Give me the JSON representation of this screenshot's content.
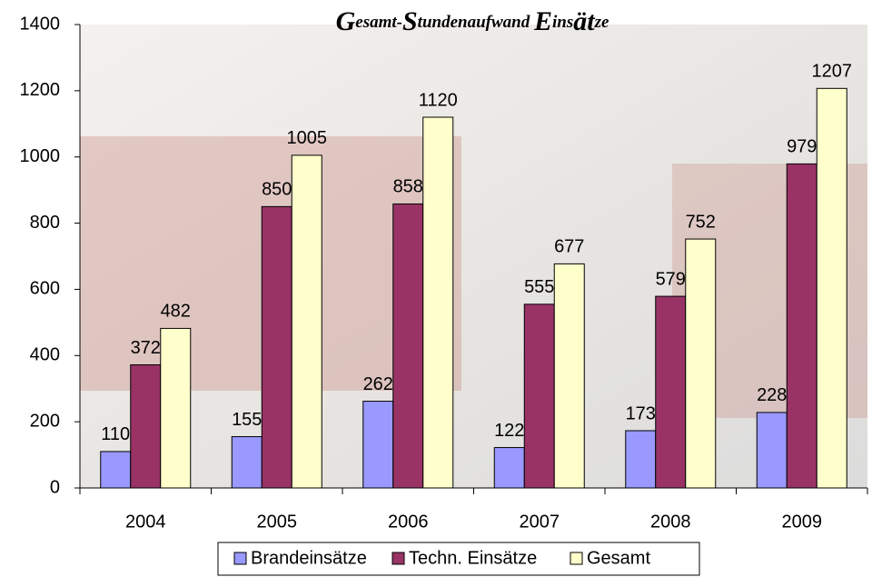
{
  "chart_data": {
    "type": "bar",
    "title": "Gesamt-Stundenaufwand Einsätze",
    "categories": [
      "2004",
      "2005",
      "2006",
      "2007",
      "2008",
      "2009"
    ],
    "series": [
      {
        "name": "Brandeinsätze",
        "color": "#9999ff",
        "values": [
          110,
          155,
          262,
          122,
          173,
          228
        ]
      },
      {
        "name": "Techn. Einsätze",
        "color": "#993366",
        "values": [
          372,
          850,
          858,
          555,
          579,
          979
        ]
      },
      {
        "name": "Gesamt",
        "color": "#ffffcc",
        "values": [
          482,
          1005,
          1120,
          677,
          752,
          1207
        ]
      }
    ],
    "ylim": [
      0,
      1400
    ],
    "yticks": [
      0,
      200,
      400,
      600,
      800,
      1000,
      1200,
      1400
    ],
    "legend": "bottom"
  }
}
